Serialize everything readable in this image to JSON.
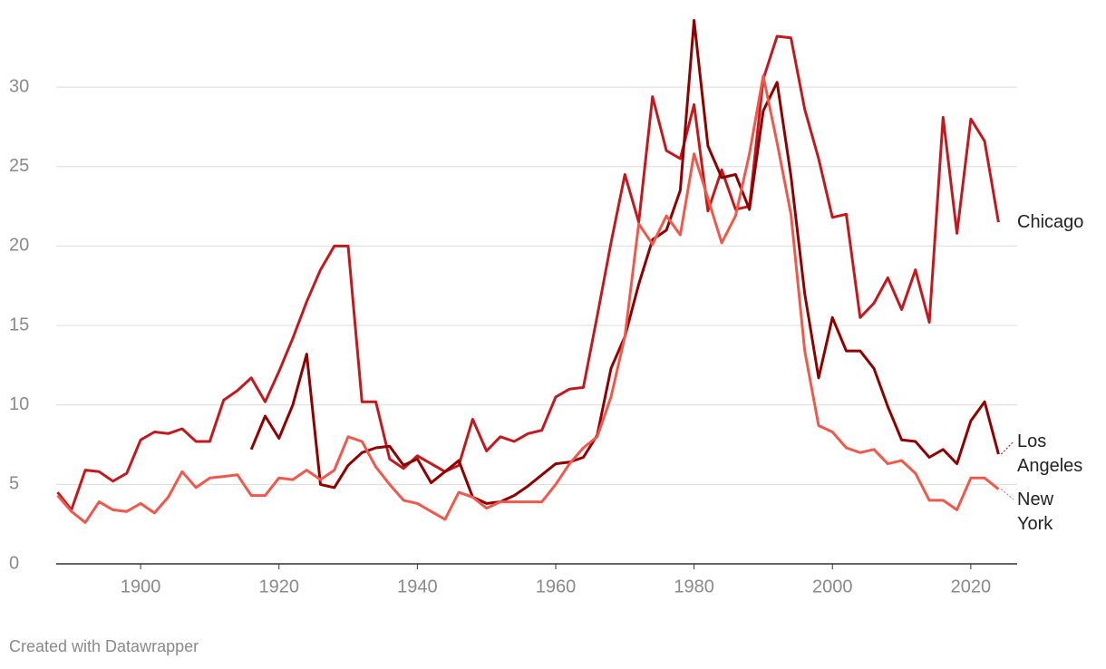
{
  "chart_data": {
    "type": "line",
    "credit": "Created with Datawrapper",
    "x": [
      1888,
      1890,
      1892,
      1894,
      1896,
      1898,
      1900,
      1902,
      1904,
      1906,
      1908,
      1910,
      1912,
      1914,
      1916,
      1918,
      1920,
      1922,
      1924,
      1926,
      1928,
      1930,
      1932,
      1934,
      1936,
      1938,
      1940,
      1942,
      1944,
      1946,
      1948,
      1950,
      1952,
      1954,
      1956,
      1958,
      1960,
      1962,
      1964,
      1966,
      1968,
      1970,
      1972,
      1974,
      1976,
      1978,
      1980,
      1982,
      1984,
      1986,
      1988,
      1990,
      1992,
      1994,
      1996,
      1998,
      2000,
      2002,
      2004,
      2006,
      2008,
      2010,
      2012,
      2014,
      2016,
      2018,
      2020,
      2022,
      2024
    ],
    "series": [
      {
        "name": "Chicago",
        "color": "#c2191f",
        "values": [
          4.5,
          3.4,
          5.9,
          5.8,
          5.2,
          5.7,
          7.8,
          8.3,
          8.2,
          8.5,
          7.7,
          7.7,
          10.3,
          10.9,
          11.7,
          10.2,
          12.1,
          14.2,
          16.5,
          18.5,
          20.0,
          20.0,
          10.2,
          10.2,
          6.6,
          6.0,
          6.8,
          6.3,
          5.8,
          6.2,
          9.1,
          7.1,
          8.0,
          7.7,
          8.2,
          8.4,
          10.5,
          11.0,
          11.1,
          15.6,
          20.2,
          24.5,
          21.5,
          29.4,
          26.0,
          25.5,
          28.9,
          22.2,
          24.8,
          22.3,
          22.5,
          30.5,
          33.2,
          33.1,
          28.6,
          25.5,
          21.8,
          22.0,
          15.5,
          16.4,
          18.0,
          16.0,
          18.5,
          15.2,
          28.1,
          20.8,
          28.0,
          26.6,
          21.5
        ]
      },
      {
        "name": "Los Angeles",
        "color": "#8f0000",
        "values": [
          null,
          null,
          null,
          null,
          null,
          null,
          null,
          null,
          null,
          null,
          null,
          null,
          null,
          null,
          7.2,
          9.3,
          7.9,
          10.0,
          13.2,
          5.0,
          4.8,
          6.2,
          7.0,
          7.3,
          7.4,
          6.2,
          6.6,
          5.1,
          5.8,
          6.5,
          4.2,
          3.8,
          3.9,
          4.3,
          4.9,
          5.6,
          6.3,
          6.4,
          6.7,
          8.1,
          12.3,
          14.3,
          17.6,
          20.4,
          21.0,
          23.5,
          34.2,
          26.3,
          24.3,
          24.5,
          22.3,
          28.5,
          30.3,
          24.4,
          17.0,
          11.7,
          15.5,
          13.4,
          13.4,
          12.3,
          9.9,
          7.8,
          7.7,
          6.7,
          7.2,
          6.3,
          9.0,
          10.2,
          6.9
        ]
      },
      {
        "name": "New York",
        "color": "#f0584c",
        "values": [
          4.3,
          3.3,
          2.6,
          3.9,
          3.4,
          3.3,
          3.8,
          3.2,
          4.2,
          5.8,
          4.8,
          5.4,
          5.5,
          5.6,
          4.3,
          4.3,
          5.4,
          5.3,
          5.9,
          5.3,
          5.9,
          8.0,
          7.7,
          6.1,
          5.0,
          4.0,
          3.8,
          3.3,
          2.8,
          4.5,
          4.2,
          3.5,
          3.9,
          3.9,
          3.9,
          3.9,
          5.0,
          6.3,
          7.3,
          8.0,
          10.5,
          14.3,
          21.4,
          20.1,
          21.9,
          20.7,
          25.8,
          23.0,
          20.2,
          21.9,
          25.8,
          30.7,
          26.5,
          22.0,
          13.4,
          8.7,
          8.3,
          7.3,
          7.0,
          7.2,
          6.3,
          6.5,
          5.7,
          4.0,
          4.0,
          3.4,
          5.4,
          5.4,
          4.7
        ]
      }
    ],
    "xlim": [
      1887.8,
      2026.7
    ],
    "xticks": [
      1900,
      1920,
      1940,
      1960,
      1980,
      2000,
      2020
    ],
    "ylim": [
      0,
      34.5
    ],
    "yticks": [
      0,
      5,
      10,
      15,
      20,
      25,
      30
    ],
    "grid": true
  }
}
